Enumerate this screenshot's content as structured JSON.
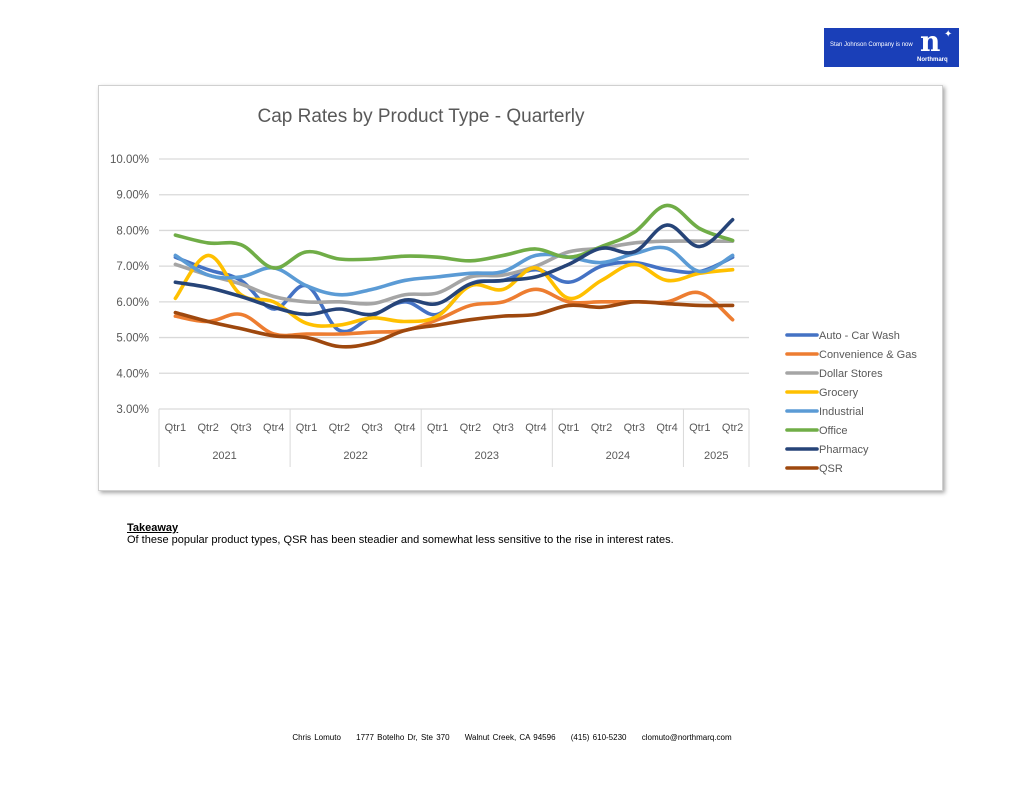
{
  "logo": {
    "tagline": "Stan Johnson Company is now",
    "mark": "n",
    "brand": "Northmarq",
    "background": "#1a3fb8"
  },
  "chart_data": {
    "type": "line",
    "title": "Cap Rates by Product Type - Quarterly",
    "xlabel": "",
    "ylabel": "",
    "ylim": [
      3,
      10
    ],
    "yticks": [
      "3.00%",
      "4.00%",
      "5.00%",
      "6.00%",
      "7.00%",
      "8.00%",
      "9.00%",
      "10.00%"
    ],
    "ytick_values": [
      3,
      4,
      5,
      6,
      7,
      8,
      9,
      10
    ],
    "grid": true,
    "legend": "right",
    "categories": [
      "Qtr1",
      "Qtr2",
      "Qtr3",
      "Qtr4",
      "Qtr1",
      "Qtr2",
      "Qtr3",
      "Qtr4",
      "Qtr1",
      "Qtr2",
      "Qtr3",
      "Qtr4",
      "Qtr1",
      "Qtr2",
      "Qtr3",
      "Qtr4",
      "Qtr1",
      "Qtr2"
    ],
    "groups": [
      {
        "label": "2021",
        "count": 4
      },
      {
        "label": "2022",
        "count": 4
      },
      {
        "label": "2023",
        "count": 4
      },
      {
        "label": "2024",
        "count": 4
      },
      {
        "label": "2025",
        "count": 2
      }
    ],
    "series": [
      {
        "name": "Auto - Car Wash",
        "color": "#4472c4",
        "values": [
          7.25,
          6.9,
          6.6,
          5.8,
          6.45,
          5.2,
          5.6,
          6.0,
          5.65,
          6.5,
          6.6,
          6.9,
          6.55,
          7.0,
          7.1,
          6.9,
          6.85,
          7.25
        ]
      },
      {
        "name": "Convenience & Gas",
        "color": "#ed7d31",
        "values": [
          5.6,
          5.45,
          5.65,
          5.1,
          5.1,
          5.1,
          5.15,
          5.2,
          5.5,
          5.9,
          6.0,
          6.35,
          6.0,
          6.0,
          6.0,
          6.0,
          6.25,
          5.5
        ]
      },
      {
        "name": "Dollar Stores",
        "color": "#a5a5a5",
        "values": [
          7.05,
          6.75,
          6.5,
          6.15,
          6.0,
          6.0,
          5.95,
          6.2,
          6.25,
          6.7,
          6.75,
          7.0,
          7.4,
          7.5,
          7.65,
          7.7,
          7.7,
          7.7
        ]
      },
      {
        "name": "Grocery",
        "color": "#ffc000",
        "values": [
          6.1,
          7.3,
          6.2,
          6.0,
          5.4,
          5.35,
          5.55,
          5.45,
          5.6,
          6.45,
          6.35,
          6.95,
          6.1,
          6.6,
          7.05,
          6.6,
          6.8,
          6.9
        ]
      },
      {
        "name": "Industrial",
        "color": "#5b9bd5",
        "values": [
          7.3,
          6.75,
          6.7,
          6.95,
          6.45,
          6.2,
          6.35,
          6.6,
          6.7,
          6.8,
          6.85,
          7.3,
          7.25,
          7.1,
          7.35,
          7.5,
          6.85,
          7.3
        ]
      },
      {
        "name": "Office",
        "color": "#70ad47",
        "values": [
          7.87,
          7.65,
          7.6,
          6.95,
          7.4,
          7.2,
          7.2,
          7.28,
          7.25,
          7.15,
          7.3,
          7.48,
          7.25,
          7.55,
          7.95,
          8.7,
          8.05,
          7.72
        ]
      },
      {
        "name": "Pharmacy",
        "color": "#264478",
        "values": [
          6.55,
          6.4,
          6.15,
          5.85,
          5.65,
          5.8,
          5.65,
          6.05,
          5.95,
          6.5,
          6.6,
          6.7,
          7.05,
          7.5,
          7.4,
          8.15,
          7.55,
          8.3
        ]
      },
      {
        "name": "QSR",
        "color": "#9e480e",
        "values": [
          5.7,
          5.45,
          5.25,
          5.05,
          5.0,
          4.75,
          4.85,
          5.2,
          5.35,
          5.5,
          5.6,
          5.65,
          5.9,
          5.85,
          6.0,
          5.95,
          5.9,
          5.9
        ]
      }
    ]
  },
  "takeaway": {
    "heading": "Takeaway",
    "text": "Of these popular product types, QSR has been steadier and somewhat less sensitive to the rise in interest rates."
  },
  "footer": {
    "name": "Chris Lomuto",
    "address": "1777 Botelho Dr, Ste 370",
    "city": "Walnut Creek, CA  94596",
    "phone": "(415) 610-5230",
    "email": "clomuto@northmarq.com"
  }
}
